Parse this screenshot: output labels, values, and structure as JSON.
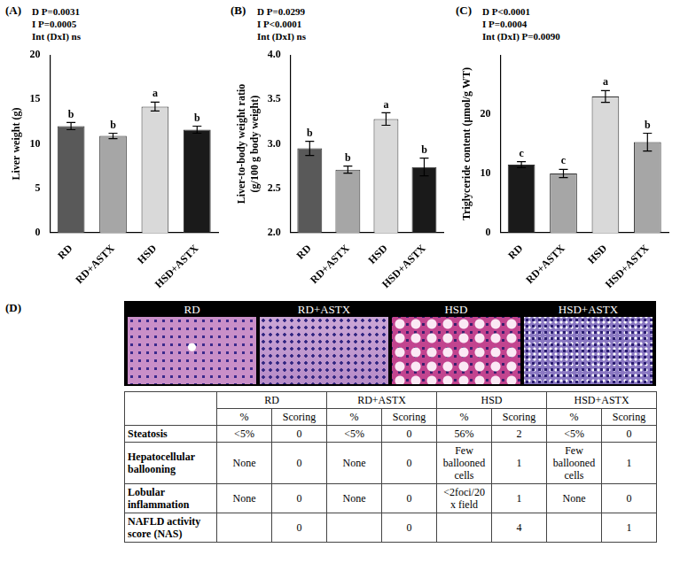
{
  "chart_data": [
    {
      "type": "bar",
      "panel": "(A)",
      "annotations": [
        "D P=0.0031",
        "I P=0.0005",
        "Int (DxI) ns"
      ],
      "y_label": [
        "Liver weight (g)"
      ],
      "categories": [
        "RD",
        "RD+ASTX",
        "HSD",
        "HSD+ASTX"
      ],
      "values": [
        12.0,
        10.9,
        14.2,
        11.6
      ],
      "errors": [
        0.4,
        0.3,
        0.5,
        0.4
      ],
      "letters": [
        "b",
        "b",
        "a",
        "b"
      ],
      "colors": [
        "#595959",
        "#a6a6a6",
        "#d9d9d9",
        "#1a1a1a"
      ],
      "ylim": [
        0,
        20
      ],
      "yticks": [
        0,
        5,
        10,
        15,
        20
      ],
      "grid": false
    },
    {
      "type": "bar",
      "panel": "(B)",
      "annotations": [
        "D P=0.0299",
        "I P<0.0001",
        "Int (DxI) ns"
      ],
      "y_label": [
        "Liver-to-body weight ratio",
        "(g/100 g body weight)"
      ],
      "categories": [
        "RD",
        "RD+ASTX",
        "HSD",
        "HSD+ASTX"
      ],
      "values": [
        2.95,
        2.71,
        3.28,
        2.74
      ],
      "errors": [
        0.08,
        0.04,
        0.07,
        0.1
      ],
      "letters": [
        "b",
        "b",
        "a",
        "b"
      ],
      "colors": [
        "#595959",
        "#a6a6a6",
        "#d9d9d9",
        "#1a1a1a"
      ],
      "ylim": [
        2,
        4
      ],
      "yticks": [
        {
          "value": 2,
          "label": "2.0"
        },
        {
          "value": 2.5,
          "label": "2.5"
        },
        {
          "value": 3,
          "label": "3.0"
        },
        {
          "value": 3.5,
          "label": "3.5"
        },
        {
          "value": 4,
          "label": "4.0"
        }
      ],
      "grid": false
    },
    {
      "type": "bar",
      "panel": "(C)",
      "annotations": [
        "D P<0.0001",
        "I P=0.0004",
        "Int (DxI) P=0.0090"
      ],
      "y_label": [
        "Triglyceride content (μmol/g WT)"
      ],
      "categories": [
        "RD",
        "RD+ASTX",
        "HSD",
        "HSD+ASTX"
      ],
      "values": [
        11.5,
        10.0,
        23.0,
        15.3
      ],
      "errors": [
        0.5,
        0.7,
        1.0,
        1.5
      ],
      "letters": [
        "c",
        "c",
        "a",
        "b"
      ],
      "colors": [
        "#1a1a1a",
        "#a6a6a6",
        "#d9d9d9",
        "#a6a6a6"
      ],
      "ylim": [
        0,
        30
      ],
      "yticks": [
        0,
        10,
        20
      ],
      "grid": false
    }
  ],
  "histology": {
    "panel": "(D)",
    "labels": [
      "RD",
      "RD+ASTX",
      "HSD",
      "HSD+ASTX"
    ]
  },
  "table": {
    "columns": [
      "RD",
      "RD+ASTX",
      "HSD",
      "HSD+ASTX"
    ],
    "subcolumns": [
      "%",
      "Scoring"
    ],
    "rows": [
      {
        "label": "Steatosis",
        "cells": [
          "<5%",
          0,
          "<5%",
          0,
          "56%",
          2,
          "<5%",
          0
        ]
      },
      {
        "label": "Hepatocellular ballooning",
        "cells": [
          "None",
          0,
          "None",
          0,
          "Few ballooned cells",
          1,
          "Few ballooned cells",
          1
        ]
      },
      {
        "label": "Lobular inflammation",
        "cells": [
          "None",
          0,
          "None",
          0,
          "<2foci/20 x field",
          1,
          "None",
          0
        ]
      },
      {
        "label": "NAFLD activity score (NAS)",
        "cells": [
          null,
          0,
          null,
          0,
          null,
          4,
          null,
          1
        ]
      }
    ]
  }
}
